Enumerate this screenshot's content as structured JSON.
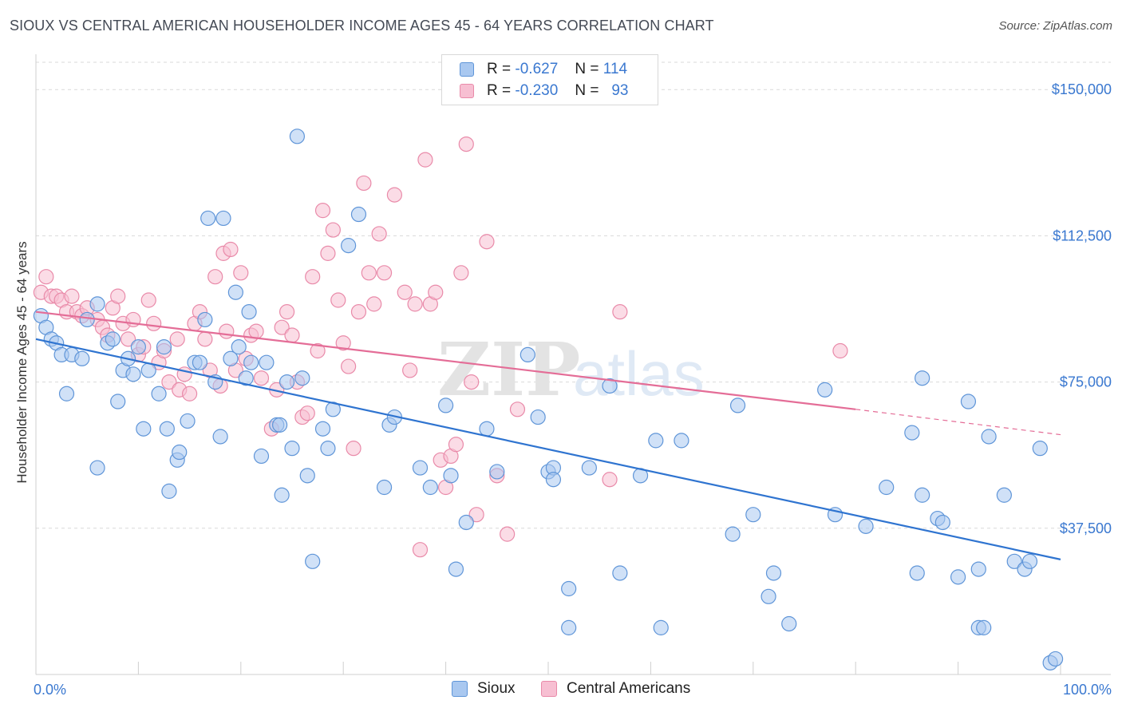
{
  "header": {
    "title": "SIOUX VS CENTRAL AMERICAN HOUSEHOLDER INCOME AGES 45 - 64 YEARS CORRELATION CHART",
    "source": "Source: ZipAtlas.com"
  },
  "legend": {
    "rows": [
      {
        "r_label": "R =",
        "r_value": "-0.627",
        "n_label": "N =",
        "n_value": "114"
      },
      {
        "r_label": "R =",
        "r_value": "-0.230",
        "n_label": "N =",
        "n_value": "93"
      }
    ]
  },
  "bottom_legend": [
    "Sioux",
    "Central Americans"
  ],
  "watermark": {
    "zip": "ZIP",
    "atlas": "atlas"
  },
  "colors": {
    "sioux_fill": "#a9c8f0",
    "sioux_stroke": "#5f95d8",
    "sioux_line": "#2f74d0",
    "central_fill": "#f7bfd2",
    "central_stroke": "#e98aa9",
    "central_line": "#e46d97",
    "grid": "#d9d9d9",
    "tick_text": "#3a78d0"
  },
  "chart_data": {
    "type": "scatter",
    "title": "SIOUX VS CENTRAL AMERICAN HOUSEHOLDER INCOME AGES 45 - 64 YEARS CORRELATION CHART",
    "xlabel": "",
    "ylabel": "Householder Income Ages 45 - 64 years",
    "xlim": [
      0,
      100
    ],
    "ylim": [
      0,
      157000
    ],
    "x_tick_labels": [
      "0.0%",
      "100.0%"
    ],
    "y_ticks": [
      37500,
      75000,
      112500,
      150000
    ],
    "y_tick_labels": [
      "$37,500",
      "$75,000",
      "$112,500",
      "$150,000"
    ],
    "grid": true,
    "legend_position": "top-center",
    "series": [
      {
        "name": "Sioux",
        "r": -0.627,
        "n": 114,
        "trend": {
          "x": [
            0,
            100
          ],
          "y": [
            86000,
            29500
          ]
        },
        "points": [
          [
            0.5,
            92
          ],
          [
            1,
            89
          ],
          [
            1.5,
            86
          ],
          [
            2,
            85
          ],
          [
            2.5,
            82
          ],
          [
            3,
            72
          ],
          [
            3.5,
            82
          ],
          [
            4.5,
            81
          ],
          [
            5,
            91
          ],
          [
            6,
            53
          ],
          [
            6,
            95
          ],
          [
            7,
            85
          ],
          [
            7.5,
            86
          ],
          [
            8,
            70
          ],
          [
            8.5,
            78
          ],
          [
            9,
            81
          ],
          [
            9.5,
            77
          ],
          [
            10,
            84
          ],
          [
            10.5,
            63
          ],
          [
            11,
            78
          ],
          [
            12,
            72
          ],
          [
            12.5,
            84
          ],
          [
            12.8,
            63
          ],
          [
            13,
            47
          ],
          [
            13.8,
            55
          ],
          [
            14,
            57
          ],
          [
            14.8,
            65
          ],
          [
            15.5,
            80
          ],
          [
            16,
            80
          ],
          [
            16.5,
            91
          ],
          [
            16.8,
            117
          ],
          [
            17.5,
            75
          ],
          [
            18,
            61
          ],
          [
            18.3,
            117
          ],
          [
            19,
            81
          ],
          [
            19.5,
            98
          ],
          [
            19.8,
            84
          ],
          [
            20.5,
            76
          ],
          [
            20.8,
            93
          ],
          [
            21,
            80
          ],
          [
            22,
            56
          ],
          [
            22.5,
            80
          ],
          [
            23.5,
            64
          ],
          [
            23.8,
            64
          ],
          [
            24,
            46
          ],
          [
            24.5,
            75
          ],
          [
            25,
            58
          ],
          [
            25.5,
            138
          ],
          [
            26,
            76
          ],
          [
            26.5,
            51
          ],
          [
            27,
            29
          ],
          [
            28,
            63
          ],
          [
            28.5,
            58
          ],
          [
            29,
            68
          ],
          [
            30.5,
            110
          ],
          [
            31.5,
            118
          ],
          [
            34,
            48
          ],
          [
            34.5,
            64
          ],
          [
            35,
            66
          ],
          [
            37.5,
            53
          ],
          [
            38.5,
            48
          ],
          [
            40,
            69
          ],
          [
            40.5,
            51
          ],
          [
            41,
            27
          ],
          [
            42,
            39
          ],
          [
            44,
            63
          ],
          [
            45,
            52
          ],
          [
            48,
            82
          ],
          [
            49,
            66
          ],
          [
            50,
            52
          ],
          [
            50.5,
            53
          ],
          [
            50.5,
            50
          ],
          [
            52,
            22
          ],
          [
            52,
            12
          ],
          [
            54,
            53
          ],
          [
            56,
            74
          ],
          [
            57,
            26
          ],
          [
            59,
            51
          ],
          [
            60.5,
            60
          ],
          [
            61,
            12
          ],
          [
            63,
            60
          ],
          [
            68,
            36
          ],
          [
            68.5,
            69
          ],
          [
            70,
            41
          ],
          [
            71.5,
            20
          ],
          [
            72,
            26
          ],
          [
            73.5,
            13
          ],
          [
            77,
            73
          ],
          [
            78,
            41
          ],
          [
            81,
            38
          ],
          [
            83,
            48
          ],
          [
            85.5,
            62
          ],
          [
            86.5,
            76
          ],
          [
            86,
            26
          ],
          [
            86.5,
            46
          ],
          [
            88,
            40
          ],
          [
            88.5,
            39
          ],
          [
            90,
            25
          ],
          [
            91,
            70
          ],
          [
            92,
            27
          ],
          [
            92,
            12
          ],
          [
            92.5,
            12
          ],
          [
            93,
            61
          ],
          [
            94.5,
            46
          ],
          [
            95.5,
            29
          ],
          [
            96.5,
            27
          ],
          [
            97,
            29
          ],
          [
            98,
            58
          ],
          [
            99,
            3
          ],
          [
            99.5,
            4
          ]
        ]
      },
      {
        "name": "Central Americans",
        "r": -0.23,
        "n": 93,
        "trend": {
          "x": [
            0,
            80
          ],
          "y": [
            93000,
            68000
          ]
        },
        "trend_dashed_to": {
          "x": 100,
          "y": 61500
        },
        "points": [
          [
            0.5,
            98
          ],
          [
            1,
            102
          ],
          [
            1.5,
            97
          ],
          [
            2,
            97
          ],
          [
            2.5,
            96
          ],
          [
            3,
            93
          ],
          [
            3.5,
            97
          ],
          [
            4,
            93
          ],
          [
            4.5,
            92
          ],
          [
            5,
            94
          ],
          [
            6,
            91
          ],
          [
            6.5,
            89
          ],
          [
            7,
            87
          ],
          [
            7.5,
            94
          ],
          [
            8,
            97
          ],
          [
            8.5,
            90
          ],
          [
            9,
            86
          ],
          [
            9.5,
            91
          ],
          [
            10,
            82
          ],
          [
            10.5,
            84
          ],
          [
            11,
            96
          ],
          [
            11.5,
            90
          ],
          [
            12,
            80
          ],
          [
            12.5,
            83
          ],
          [
            13,
            75
          ],
          [
            13.8,
            86
          ],
          [
            14,
            73
          ],
          [
            14.5,
            77
          ],
          [
            15,
            72
          ],
          [
            15.5,
            90
          ],
          [
            16,
            93
          ],
          [
            16.5,
            86
          ],
          [
            17,
            78
          ],
          [
            17.5,
            102
          ],
          [
            18,
            74
          ],
          [
            18.3,
            108
          ],
          [
            18.6,
            88
          ],
          [
            19,
            109
          ],
          [
            19.5,
            78
          ],
          [
            20,
            103
          ],
          [
            20.5,
            81
          ],
          [
            21,
            87
          ],
          [
            21.5,
            88
          ],
          [
            22,
            76
          ],
          [
            23,
            63
          ],
          [
            23.5,
            73
          ],
          [
            24,
            89
          ],
          [
            24.5,
            93
          ],
          [
            25,
            87
          ],
          [
            25.5,
            75
          ],
          [
            26,
            66
          ],
          [
            26.5,
            67
          ],
          [
            27,
            102
          ],
          [
            27.5,
            83
          ],
          [
            28,
            119
          ],
          [
            28.5,
            108
          ],
          [
            29,
            114
          ],
          [
            29.5,
            96
          ],
          [
            30,
            85
          ],
          [
            30.5,
            79
          ],
          [
            31,
            58
          ],
          [
            31.5,
            93
          ],
          [
            32,
            126
          ],
          [
            32.5,
            103
          ],
          [
            33,
            95
          ],
          [
            33.5,
            113
          ],
          [
            34,
            103
          ],
          [
            35,
            123
          ],
          [
            36,
            98
          ],
          [
            36.5,
            78
          ],
          [
            37,
            95
          ],
          [
            37.5,
            32
          ],
          [
            38,
            132
          ],
          [
            38.5,
            95
          ],
          [
            39,
            98
          ],
          [
            39.5,
            55
          ],
          [
            40,
            48
          ],
          [
            40.5,
            56
          ],
          [
            41,
            59
          ],
          [
            41.5,
            103
          ],
          [
            42,
            136
          ],
          [
            42.5,
            75
          ],
          [
            43,
            41
          ],
          [
            44,
            111
          ],
          [
            45,
            51
          ],
          [
            46,
            36
          ],
          [
            47,
            68
          ],
          [
            56,
            50
          ],
          [
            57,
            93
          ],
          [
            78.5,
            83
          ]
        ]
      }
    ]
  }
}
